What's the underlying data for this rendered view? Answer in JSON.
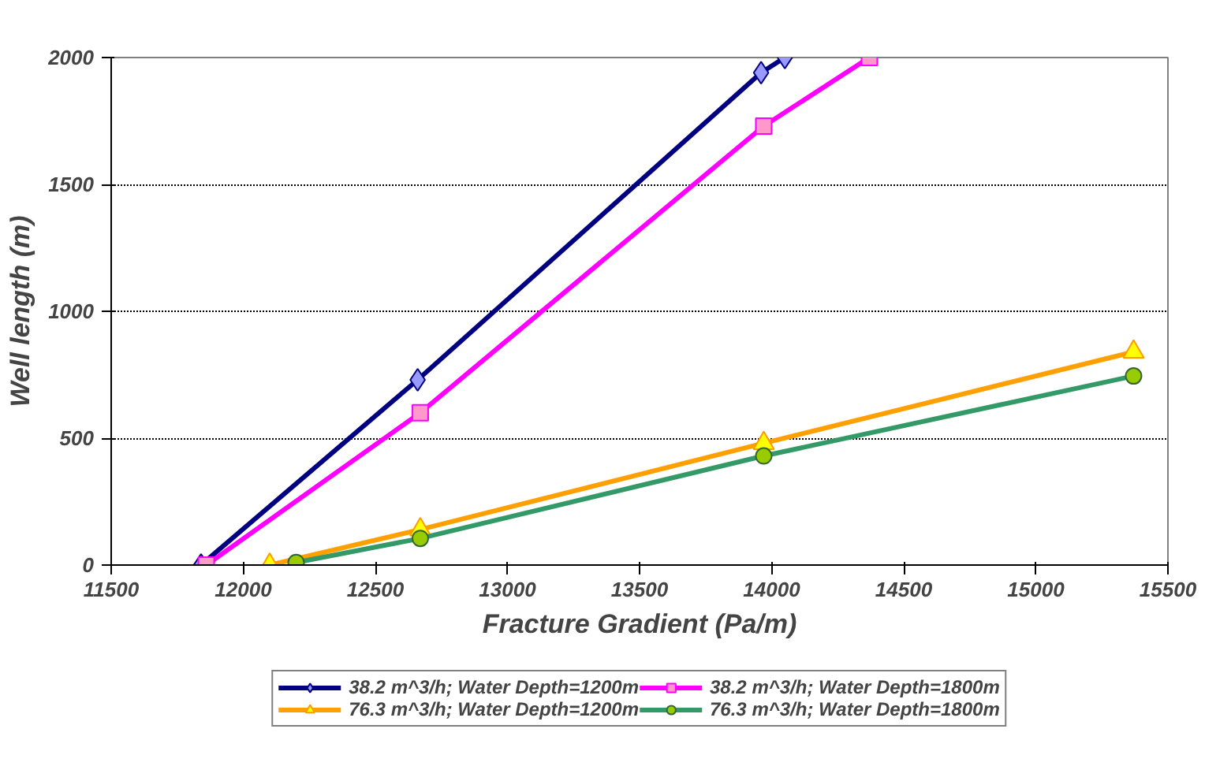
{
  "chart_data": {
    "type": "line",
    "xlabel": "Fracture Gradient (Pa/m)",
    "ylabel": "Well length (m)",
    "xlim": [
      11500,
      15500
    ],
    "xticks": [
      11500,
      12000,
      12500,
      13000,
      13500,
      14000,
      14500,
      15000,
      15500
    ],
    "ylim": [
      0,
      2000
    ],
    "yticks": [
      0,
      500,
      1000,
      1500,
      2000
    ],
    "grid": "y",
    "legend": "bottom",
    "line_style": "solid",
    "series": [
      {
        "name": "38.2 m^3/h; Water Depth=1200m",
        "color": "#000080",
        "marker": "diamond",
        "x": [
          11840,
          12660,
          13960,
          14050
        ],
        "values": [
          0,
          730,
          1940,
          2000
        ]
      },
      {
        "name": "38.2 m^3/h; Water Depth=1800m",
        "color": "#ff00ff",
        "marker": "square",
        "x": [
          11860,
          12670,
          13970,
          14370
        ],
        "values": [
          0,
          600,
          1730,
          2000
        ]
      },
      {
        "name": "76.3 m^3/h; Water Depth=1200m",
        "color": "#ffa000",
        "marker": "triangle",
        "x": [
          12100,
          12670,
          13970,
          15370
        ],
        "values": [
          0,
          140,
          480,
          840
        ]
      },
      {
        "name": "76.3 m^3/h; Water Depth=1800m",
        "color": "#339966",
        "marker": "circle",
        "x": [
          12200,
          12670,
          13970,
          15370
        ],
        "values": [
          10,
          105,
          430,
          745
        ]
      }
    ]
  }
}
